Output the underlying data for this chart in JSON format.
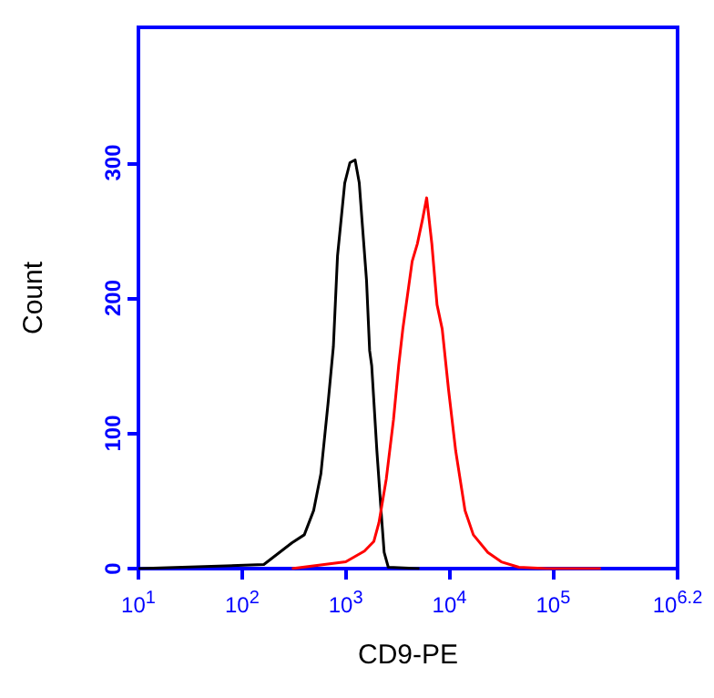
{
  "chart_data": {
    "type": "line",
    "xlabel": "CD9-PE",
    "ylabel": "Count",
    "log": "x",
    "grid": false,
    "marker": "none",
    "line_style": "solid",
    "xlim": [
      10,
      1584893
    ],
    "ylim": [
      0,
      400
    ],
    "xticks": [
      {
        "value": 10,
        "label": "10$^{1}$"
      },
      {
        "value": 100,
        "label": "10$^{2}$"
      },
      {
        "value": 1000,
        "label": "10$^{3}$"
      },
      {
        "value": 10000,
        "label": "10$^{4}$"
      },
      {
        "value": 100000,
        "label": "10$^{5}$"
      },
      {
        "value": 1584893,
        "label": "10$^{6.2}$"
      }
    ],
    "yticks": [
      0,
      100,
      200,
      300
    ],
    "series": [
      {
        "color": "#000000",
        "x": [
          10,
          162,
          302,
          398,
          490,
          575,
          676,
          759,
          832,
          977,
          1096,
          1230,
          1349,
          1445,
          1585,
          1698,
          1778,
          1995,
          2188,
          2344,
          2570,
          5129
        ],
        "values": [
          0,
          3,
          19,
          25,
          43,
          70,
          123,
          164,
          231,
          285,
          300,
          302,
          285,
          254,
          213,
          161,
          150,
          87,
          43,
          12,
          1,
          0
        ]
      },
      {
        "color": "#ff0000",
        "x": [
          302,
          1000,
          1514,
          1862,
          2089,
          2455,
          2884,
          3236,
          3548,
          4365,
          4898,
          5495,
          6026,
          6761,
          7586,
          8511,
          9772,
          11482,
          14125,
          16982,
          23442,
          31623,
          46774,
          87096,
          288403
        ],
        "values": [
          0,
          5,
          13,
          20,
          34,
          66,
          110,
          150,
          177,
          227,
          240,
          258,
          274,
          240,
          195,
          177,
          133,
          87,
          43,
          25,
          12,
          5,
          1,
          0,
          0
        ]
      }
    ]
  }
}
